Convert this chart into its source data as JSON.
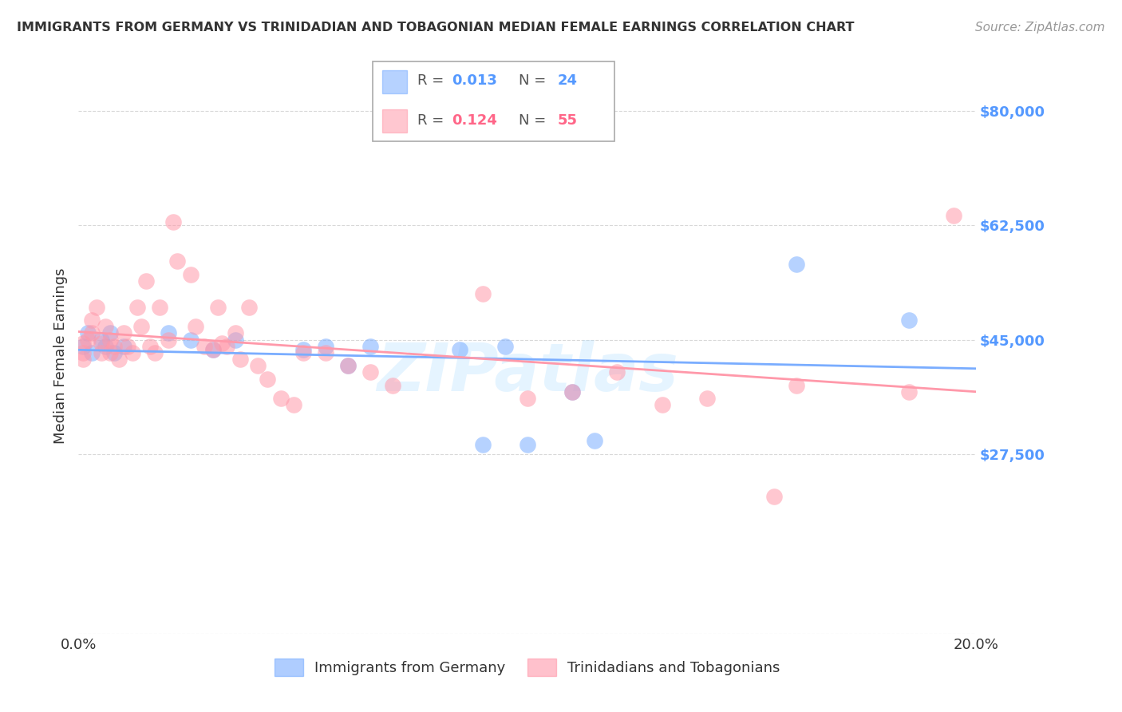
{
  "title": "IMMIGRANTS FROM GERMANY VS TRINIDADIAN AND TOBAGONIAN MEDIAN FEMALE EARNINGS CORRELATION CHART",
  "source": "Source: ZipAtlas.com",
  "ylabel": "Median Female Earnings",
  "xlim": [
    0.0,
    0.2
  ],
  "ylim": [
    0,
    85000
  ],
  "yticks": [
    0,
    27500,
    45000,
    62500,
    80000
  ],
  "ytick_labels": [
    "",
    "$27,500",
    "$45,000",
    "$62,500",
    "$80,000"
  ],
  "background_color": "#ffffff",
  "grid_color": "#d8d8d8",
  "series1_color": "#7aadff",
  "series2_color": "#ff99aa",
  "series1_label": "Immigrants from Germany",
  "series2_label": "Trinidadians and Tobagonians",
  "series1_R": "0.013",
  "series1_N": "24",
  "series2_R": "0.124",
  "series2_N": "55",
  "watermark": "ZIPatlas",
  "blue_x": [
    0.001,
    0.002,
    0.003,
    0.005,
    0.006,
    0.007,
    0.008,
    0.01,
    0.02,
    0.025,
    0.03,
    0.035,
    0.05,
    0.055,
    0.06,
    0.065,
    0.085,
    0.09,
    0.095,
    0.1,
    0.11,
    0.115,
    0.16,
    0.185
  ],
  "blue_y": [
    44000,
    46000,
    43000,
    45000,
    44000,
    46000,
    43000,
    44000,
    46000,
    45000,
    43500,
    45000,
    43500,
    44000,
    41000,
    44000,
    43500,
    29000,
    44000,
    29000,
    37000,
    29500,
    56500,
    48000
  ],
  "pink_x": [
    0.001,
    0.001,
    0.001,
    0.002,
    0.003,
    0.003,
    0.004,
    0.005,
    0.005,
    0.006,
    0.007,
    0.007,
    0.008,
    0.009,
    0.01,
    0.011,
    0.012,
    0.013,
    0.014,
    0.015,
    0.016,
    0.017,
    0.018,
    0.02,
    0.021,
    0.022,
    0.025,
    0.026,
    0.028,
    0.03,
    0.031,
    0.032,
    0.033,
    0.035,
    0.036,
    0.038,
    0.04,
    0.042,
    0.045,
    0.048,
    0.05,
    0.055,
    0.06,
    0.065,
    0.07,
    0.09,
    0.1,
    0.11,
    0.12,
    0.13,
    0.14,
    0.155,
    0.16,
    0.185,
    0.195
  ],
  "pink_y": [
    44500,
    43000,
    42000,
    45000,
    46000,
    48000,
    50000,
    44500,
    43000,
    47000,
    45000,
    43000,
    44000,
    42000,
    46000,
    44000,
    43000,
    50000,
    47000,
    54000,
    44000,
    43000,
    50000,
    45000,
    63000,
    57000,
    55000,
    47000,
    44000,
    43500,
    50000,
    44500,
    44000,
    46000,
    42000,
    50000,
    41000,
    39000,
    36000,
    35000,
    43000,
    43000,
    41000,
    40000,
    38000,
    52000,
    36000,
    37000,
    40000,
    35000,
    36000,
    21000,
    38000,
    37000,
    64000
  ]
}
